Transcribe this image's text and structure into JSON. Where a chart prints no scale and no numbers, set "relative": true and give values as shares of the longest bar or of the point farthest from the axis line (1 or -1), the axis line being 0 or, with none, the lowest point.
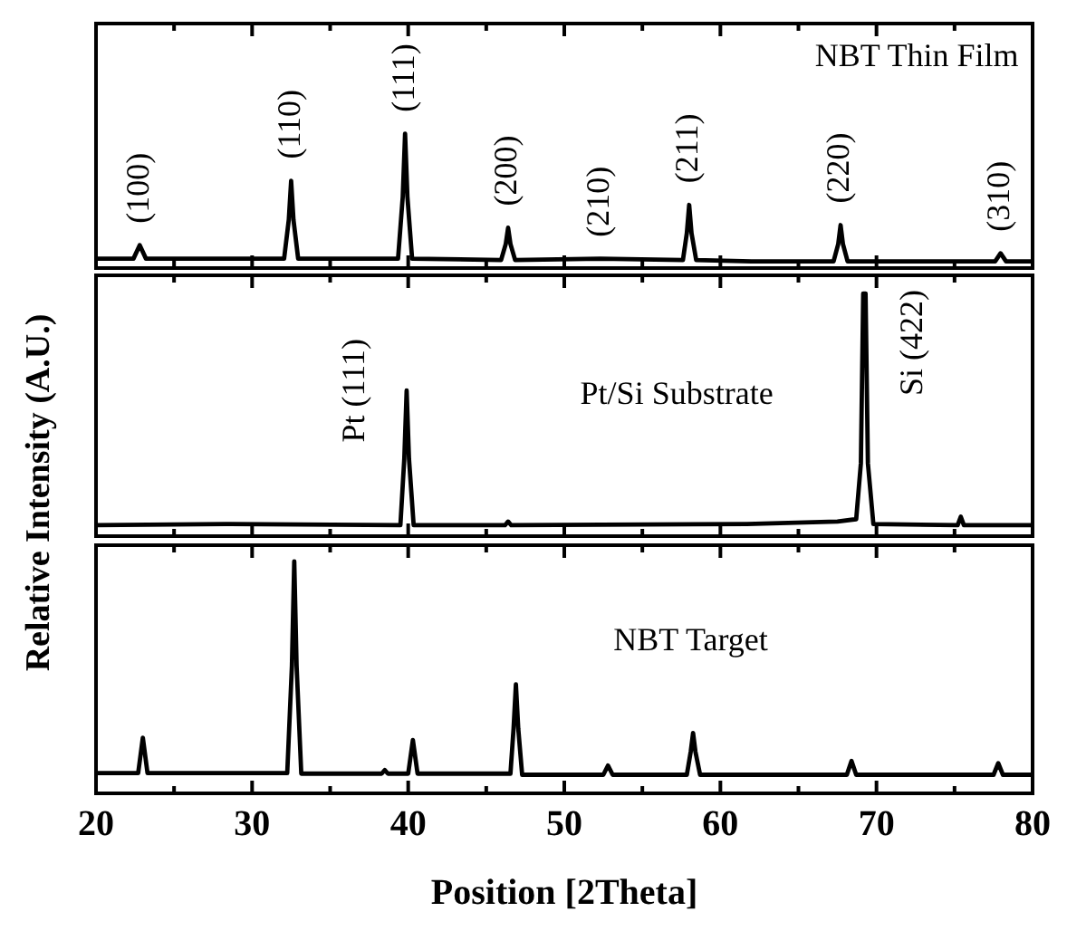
{
  "chart_data": [
    {
      "type": "line",
      "title": "NBT Thin Film",
      "relative": true,
      "xlim": [
        20,
        80
      ],
      "tick_labels": false,
      "xticks": [
        20,
        {
          "value": 25,
          "label": null
        },
        30,
        {
          "value": 35,
          "label": null
        },
        40,
        {
          "value": 45,
          "label": null
        },
        50,
        {
          "value": 55,
          "label": null
        },
        60,
        {
          "value": 65,
          "label": null
        },
        70,
        {
          "value": 75,
          "label": null
        },
        80
      ],
      "series": [
        {
          "color": "#000000",
          "x": [
            20,
            22.4,
            22.8,
            23.2,
            28,
            32.05,
            32.35,
            32.5,
            32.65,
            32.95,
            36,
            39.35,
            39.65,
            39.8,
            39.95,
            40.25,
            45.95,
            46.25,
            46.4,
            46.55,
            46.85,
            52.3,
            57.6,
            57.85,
            58.0,
            58.15,
            58.45,
            62,
            67.25,
            67.55,
            67.7,
            67.85,
            68.15,
            73,
            77.6,
            77.95,
            78.3,
            80
          ],
          "values": [
            0.07,
            0.07,
            0.17,
            0.07,
            0.07,
            0.07,
            0.36,
            0.65,
            0.36,
            0.07,
            0.07,
            0.07,
            0.53,
            1,
            0.53,
            0.07,
            0.06,
            0.18,
            0.3,
            0.18,
            0.06,
            0.07,
            0.06,
            0.26,
            0.47,
            0.26,
            0.06,
            0.05,
            0.05,
            0.18,
            0.32,
            0.18,
            0.05,
            0.05,
            0.05,
            0.11,
            0.05,
            0.05
          ]
        }
      ],
      "annotations": [
        {
          "text": "(100)",
          "x": 22.8,
          "y": 0.17
        },
        {
          "text": "(110)",
          "x": 32.5,
          "y": 0.65
        },
        {
          "text": "(111)",
          "x": 39.8,
          "y": 1
        },
        {
          "text": "(200)",
          "x": 46.4,
          "y": 0.3
        },
        {
          "text": "(210)",
          "x": 52.3,
          "y": 0.07
        },
        {
          "text": "(211)",
          "x": 58.0,
          "y": 0.47
        },
        {
          "text": "(220)",
          "x": 67.7,
          "y": 0.32
        },
        {
          "text": "(310)",
          "x": 77.95,
          "y": 0.11
        }
      ]
    },
    {
      "type": "line",
      "title": "Pt/Si Substrate",
      "ylabel": "Relative Intensity (A.U.)",
      "relative": true,
      "xlim": [
        20,
        80
      ],
      "tick_labels": false,
      "xticks": [
        20,
        {
          "value": 25,
          "label": null
        },
        30,
        {
          "value": 35,
          "label": null
        },
        40,
        {
          "value": 45,
          "label": null
        },
        50,
        {
          "value": 55,
          "label": null
        },
        60,
        {
          "value": 65,
          "label": null
        },
        70,
        {
          "value": 75,
          "label": null
        },
        80
      ],
      "series": [
        {
          "color": "#000000",
          "x": [
            20,
            28.3,
            39.5,
            39.75,
            39.9,
            40.05,
            40.35,
            46.2,
            46.4,
            46.6,
            61.7,
            67.5,
            68.7,
            69.0,
            69.15,
            69.3,
            69.45,
            69.8,
            75.2,
            75.4,
            75.6,
            80
          ],
          "values": [
            0.045,
            0.05,
            0.045,
            0.32,
            0.6,
            0.32,
            0.045,
            0.045,
            0.06,
            0.045,
            0.05,
            0.06,
            0.07,
            0.3,
            1,
            1,
            0.3,
            0.05,
            0.045,
            0.08,
            0.045,
            0.045
          ]
        }
      ],
      "annotations": [
        {
          "text": "Pt (111)",
          "x": 39.9,
          "y": 0.6
        },
        {
          "text": "Si (422)",
          "x": 69.15,
          "y": 1
        }
      ]
    },
    {
      "type": "line",
      "title": "NBT Target",
      "xlabel": "Position [2Theta]",
      "relative": true,
      "xlim": [
        20,
        80
      ],
      "tick_labels": "x",
      "xticks": [
        20,
        {
          "value": 25,
          "label": null
        },
        30,
        {
          "value": 35,
          "label": null
        },
        40,
        {
          "value": 45,
          "label": null
        },
        50,
        {
          "value": 55,
          "label": null
        },
        60,
        {
          "value": 65,
          "label": null
        },
        70,
        {
          "value": 75,
          "label": null
        },
        80
      ],
      "series": [
        {
          "color": "#000000",
          "x": [
            20,
            22.7,
            23.0,
            23.3,
            32.25,
            32.55,
            32.7,
            32.85,
            33.15,
            38.3,
            38.5,
            38.7,
            40.0,
            40.3,
            40.6,
            46.55,
            46.75,
            46.9,
            47.05,
            47.3,
            52.5,
            52.8,
            53.1,
            57.85,
            58.1,
            58.25,
            58.4,
            58.7,
            68.1,
            68.4,
            68.7,
            77.5,
            77.8,
            78.1,
            80
          ],
          "values": [
            0.087,
            0.087,
            0.24,
            0.087,
            0.087,
            0.55,
            1,
            0.55,
            0.085,
            0.085,
            0.1,
            0.085,
            0.085,
            0.23,
            0.085,
            0.085,
            0.28,
            0.47,
            0.28,
            0.08,
            0.08,
            0.12,
            0.08,
            0.08,
            0.18,
            0.26,
            0.18,
            0.08,
            0.08,
            0.14,
            0.08,
            0.08,
            0.13,
            0.08,
            0.08
          ]
        }
      ]
    }
  ]
}
